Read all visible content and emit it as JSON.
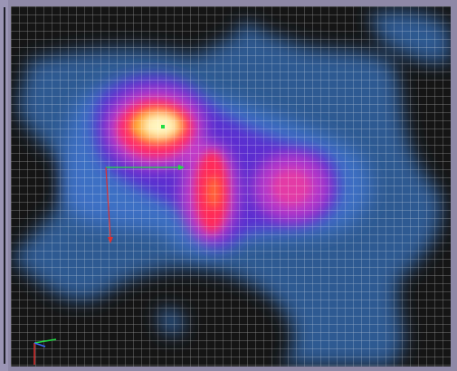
{
  "viewport": {
    "view": "heatmap-mesh-3d",
    "background_color": "#151515",
    "mesh_color": "#ffffff",
    "grid": true
  },
  "heatmap": {
    "colormap": [
      "#2f6fb0",
      "#3a7bd5",
      "#5a2fd0",
      "#c23cc9",
      "#ff2a6a",
      "#ffb12a",
      "#fff6c0"
    ],
    "hotspots": [
      {
        "label": "",
        "intensity": 1.0
      },
      {
        "label": "",
        "intensity": 0.8
      },
      {
        "label": "",
        "intensity": 0.55
      }
    ]
  },
  "gizmo": {
    "axes": [
      {
        "name": "x-axis",
        "color": "#22dd44"
      },
      {
        "name": "y-axis",
        "color": "#e03030"
      }
    ]
  },
  "orientation_triad": {
    "axes": [
      {
        "name": "x-axis",
        "color": "#22dd44"
      },
      {
        "name": "y-axis",
        "color": "#e03030"
      },
      {
        "name": "z-axis",
        "color": "#3b6cff"
      }
    ]
  }
}
